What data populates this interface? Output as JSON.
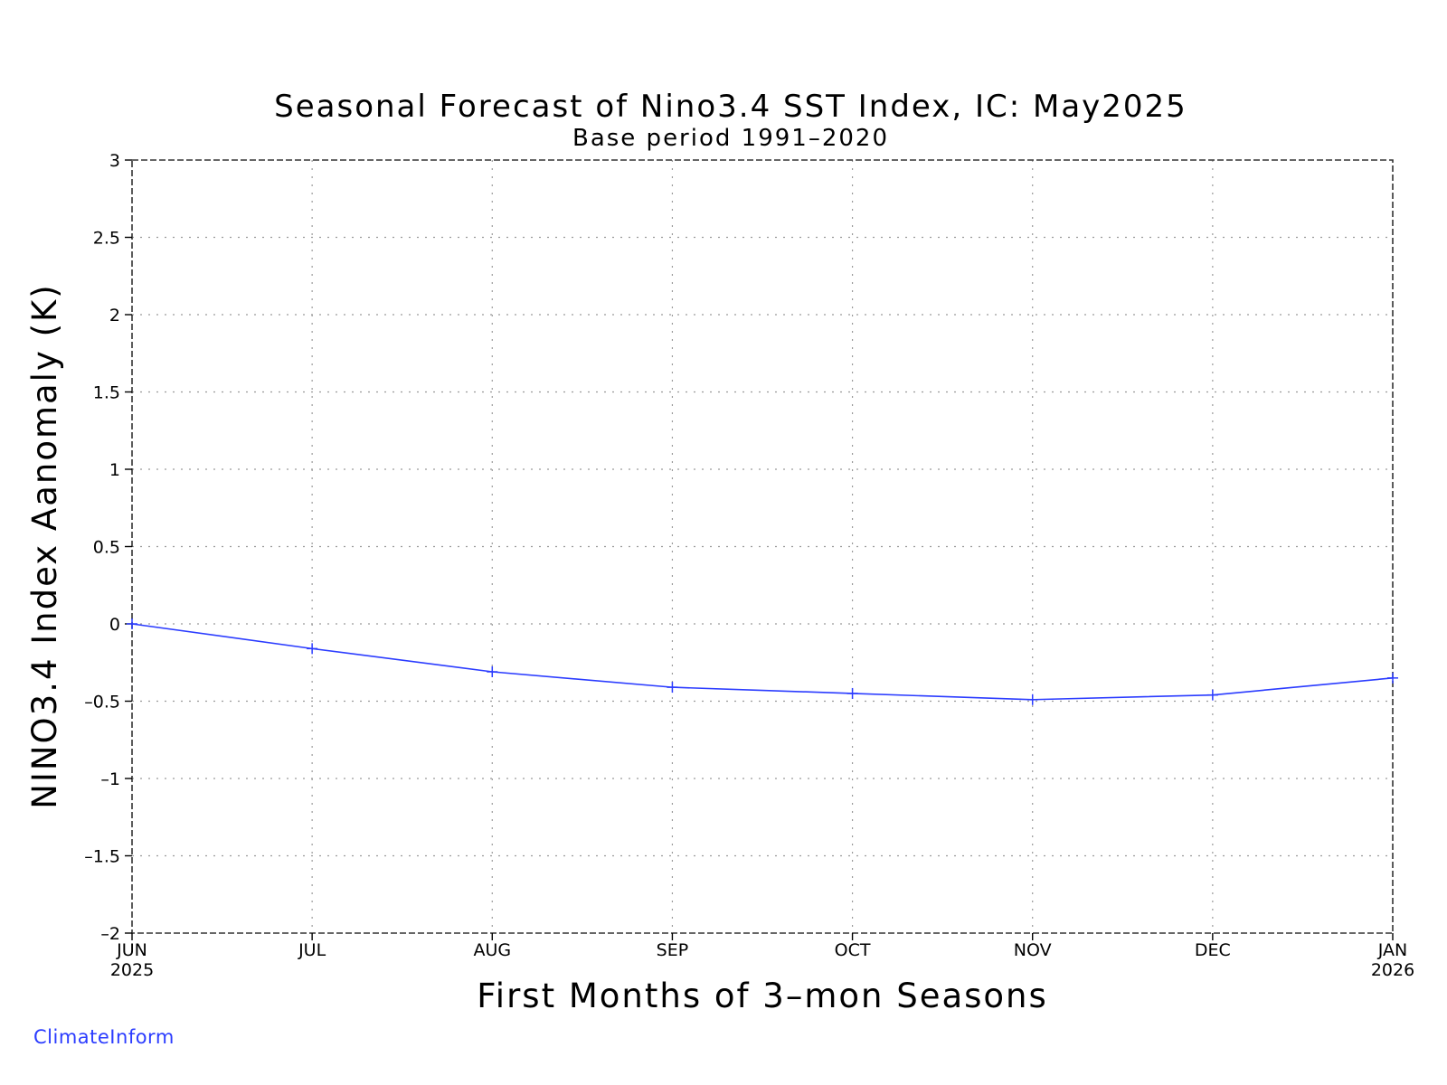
{
  "chart_data": {
    "type": "line",
    "title": "Seasonal Forecast of Nino3.4 SST Index, IC: May2025",
    "subtitle": "Base period 1991–2020",
    "xlabel": "First Months of 3–mon Seasons",
    "ylabel": "NINO3.4 Index Aanomaly (K)",
    "ylim": [
      -2,
      3
    ],
    "yticks": [
      3,
      2.5,
      2,
      1.5,
      1,
      0.5,
      0,
      -0.5,
      -1,
      -1.5,
      -2
    ],
    "ytick_labels": [
      "3",
      "2.5",
      "2",
      "1.5",
      "1",
      "0.5",
      "0",
      "–0.5",
      "–1",
      "–1.5",
      "–2"
    ],
    "categories": [
      "JUN",
      "JUL",
      "AUG",
      "SEP",
      "OCT",
      "NOV",
      "DEC",
      "JAN"
    ],
    "category_years": [
      "2025",
      "",
      "",
      "",
      "",
      "",
      "",
      "2026"
    ],
    "grid": true,
    "series": [
      {
        "values": [
          0.0,
          -0.16,
          -0.31,
          -0.41,
          -0.45,
          -0.49,
          -0.46,
          -0.35
        ],
        "color": "#2b3cff",
        "marker": "plus"
      }
    ]
  },
  "credit": "ClimateInform"
}
